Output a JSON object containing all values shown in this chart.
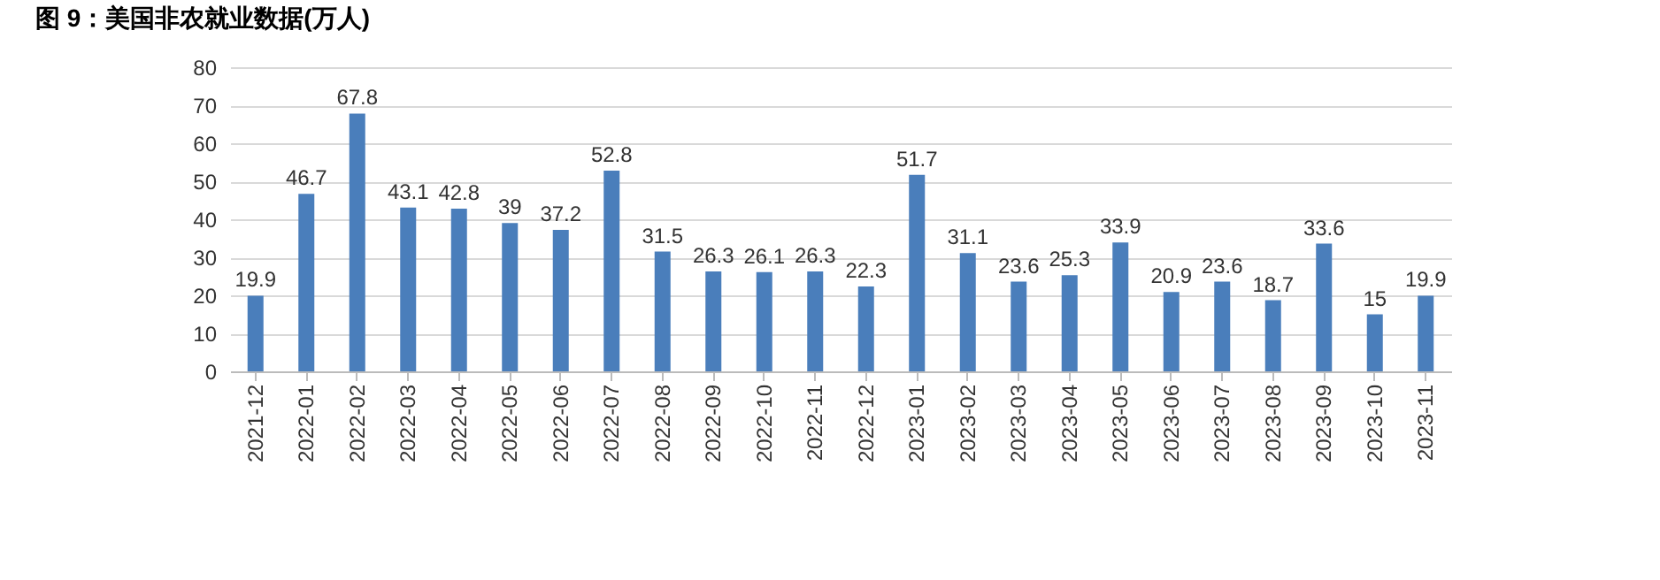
{
  "chart_data": {
    "type": "bar",
    "title": "图 9：美国非农就业数据(万人)",
    "categories": [
      "2021-12",
      "2022-01",
      "2022-02",
      "2022-03",
      "2022-04",
      "2022-05",
      "2022-06",
      "2022-07",
      "2022-08",
      "2022-09",
      "2022-10",
      "2022-11",
      "2022-12",
      "2023-01",
      "2023-02",
      "2023-03",
      "2023-04",
      "2023-05",
      "2023-06",
      "2023-07",
      "2023-08",
      "2023-09",
      "2023-10",
      "2023-11"
    ],
    "values": [
      19.9,
      46.7,
      67.8,
      43.1,
      42.8,
      39,
      37.2,
      52.8,
      31.5,
      26.3,
      26.1,
      26.3,
      22.3,
      51.7,
      31.1,
      23.6,
      25.3,
      33.9,
      20.9,
      23.6,
      18.7,
      33.6,
      15,
      19.9
    ],
    "color": "#4a7ebb",
    "data_labels": true,
    "grid": "y",
    "ylim": [
      0,
      80
    ],
    "yticks": [
      0,
      10,
      20,
      30,
      40,
      50,
      60,
      70,
      80
    ]
  }
}
